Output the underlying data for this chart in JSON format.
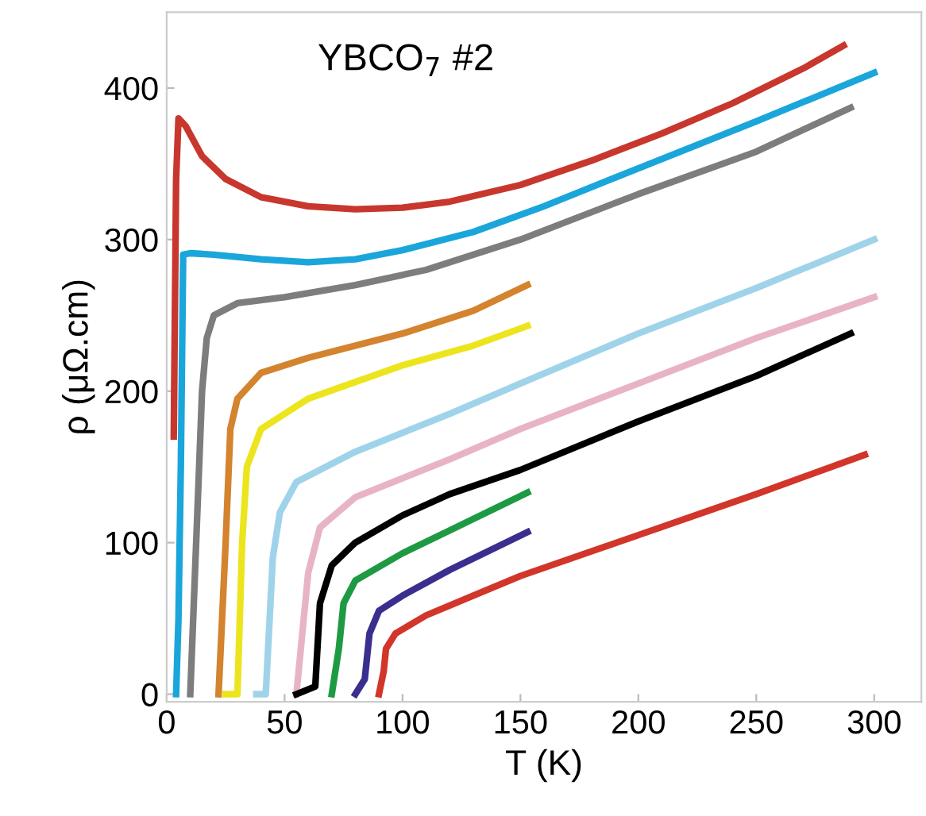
{
  "chart_data": {
    "type": "line",
    "xlabel": "T (K)",
    "ylabel": "ρ (μΩ.cm)",
    "annotations": [
      "YBCO$_{7}$ #2"
    ],
    "xlim": [
      0,
      320
    ],
    "ylim": [
      -5,
      450
    ],
    "xticks": [
      0,
      50,
      100,
      150,
      200,
      250,
      300
    ],
    "yticks": [
      0,
      100,
      200,
      300,
      400
    ],
    "grid": false,
    "legend": false,
    "marker": "none",
    "line_style": "solid",
    "series": [
      {
        "color": "#c8372d",
        "x": [
          3,
          4,
          5,
          8,
          15,
          25,
          40,
          60,
          80,
          100,
          120,
          150,
          180,
          210,
          240,
          270,
          287
        ],
        "values": [
          170,
          340,
          380,
          375,
          355,
          340,
          328,
          322,
          320,
          321,
          325,
          336,
          352,
          370,
          390,
          413,
          428
        ]
      },
      {
        "color": "#1aa6db",
        "x": [
          4,
          5,
          6,
          7,
          10,
          20,
          40,
          60,
          80,
          100,
          130,
          160,
          200,
          250,
          300
        ],
        "values": [
          0,
          50,
          150,
          290,
          291,
          290,
          287,
          285,
          287,
          293,
          305,
          322,
          347,
          378,
          410
        ]
      },
      {
        "color": "#7d7d7d",
        "x": [
          10,
          12,
          15,
          17,
          20,
          30,
          50,
          80,
          110,
          150,
          200,
          250,
          290
        ],
        "values": [
          0,
          80,
          200,
          235,
          250,
          258,
          262,
          270,
          280,
          300,
          330,
          358,
          387
        ]
      },
      {
        "color": "#d4832e",
        "x": [
          22,
          25,
          27,
          30,
          40,
          60,
          100,
          130,
          153
        ],
        "values": [
          0,
          100,
          175,
          195,
          212,
          222,
          238,
          253,
          270
        ]
      },
      {
        "color": "#ece51e",
        "x": [
          25,
          30,
          32,
          34,
          40,
          60,
          100,
          130,
          153
        ],
        "values": [
          0,
          0,
          100,
          150,
          175,
          195,
          217,
          230,
          243
        ]
      },
      {
        "color": "#9fd3ea",
        "x": [
          38,
          42,
          45,
          48,
          55,
          80,
          120,
          150,
          200,
          250,
          300
        ],
        "values": [
          0,
          0,
          90,
          120,
          140,
          160,
          185,
          205,
          238,
          268,
          300
        ]
      },
      {
        "color": "#e8b4c4",
        "x": [
          55,
          60,
          65,
          80,
          120,
          150,
          200,
          250,
          300
        ],
        "values": [
          0,
          80,
          110,
          130,
          155,
          175,
          205,
          235,
          262
        ]
      },
      {
        "color": "#000000",
        "x": [
          55,
          63,
          65,
          70,
          80,
          100,
          120,
          150,
          200,
          250,
          290
        ],
        "values": [
          0,
          5,
          60,
          85,
          100,
          118,
          132,
          148,
          180,
          210,
          238
        ]
      },
      {
        "color": "#1f9a44",
        "x": [
          70,
          73,
          75,
          80,
          100,
          120,
          153
        ],
        "values": [
          0,
          30,
          60,
          75,
          93,
          108,
          133
        ]
      },
      {
        "color": "#3a2f8f",
        "x": [
          80,
          84,
          86,
          90,
          100,
          120,
          153
        ],
        "values": [
          0,
          10,
          40,
          55,
          65,
          82,
          107
        ]
      },
      {
        "color": "#d2352a",
        "x": [
          90,
          92,
          93,
          97,
          110,
          130,
          150,
          200,
          250,
          296
        ],
        "values": [
          0,
          15,
          30,
          40,
          52,
          65,
          78,
          105,
          132,
          158
        ]
      }
    ]
  }
}
